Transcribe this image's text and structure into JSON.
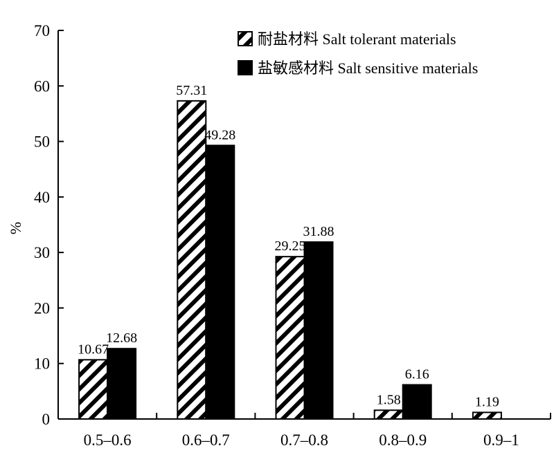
{
  "chart_data": {
    "type": "bar",
    "categories": [
      "0.5–0.6",
      "0.6–0.7",
      "0.7–0.8",
      "0.8–0.9",
      "0.9–1"
    ],
    "series": [
      {
        "name": "耐盐材料 Salt tolerant materials",
        "values": [
          10.67,
          57.31,
          29.25,
          1.58,
          1.19
        ],
        "labels": [
          "10.67",
          "57.31",
          "29.25",
          "1.58",
          "1.19"
        ],
        "pattern": "diagonal-hatch",
        "color": "#000000"
      },
      {
        "name": "盐敏感材料 Salt sensitive materials",
        "values": [
          12.68,
          49.28,
          31.88,
          6.16,
          null
        ],
        "labels": [
          "12.68",
          "49.28",
          "31.88",
          "6.16",
          ""
        ],
        "pattern": "solid",
        "color": "#000000"
      }
    ],
    "ylabel": "%",
    "xlabel": "",
    "ylim": [
      0,
      70
    ],
    "yticks": [
      "0",
      "10",
      "20",
      "30",
      "40",
      "50",
      "60",
      "70"
    ],
    "grid": false,
    "legend_position": "top-right"
  }
}
